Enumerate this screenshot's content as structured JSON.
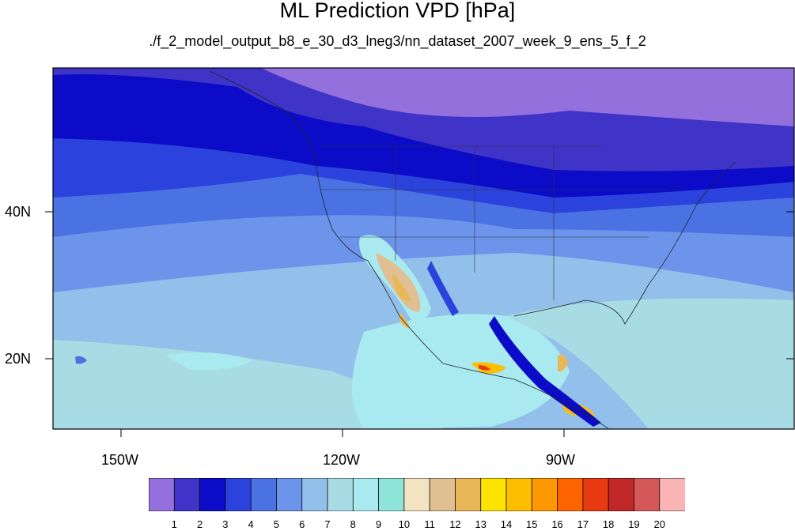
{
  "title": "ML Prediction VPD [hPa]",
  "subtitle": "./f_2_model_output_b8_e_30_d3_lneg3/nn_dataset_2007_week_9_ens_5_f_2",
  "map": {
    "region": "North Pacific and North America",
    "lon_labels": [
      "150W",
      "120W",
      "90W"
    ],
    "lat_labels": [
      "40N",
      "20N"
    ]
  },
  "colorbar": {
    "labels": [
      "1",
      "2",
      "3",
      "4",
      "5",
      "6",
      "7",
      "8",
      "9",
      "10",
      "11",
      "12",
      "13",
      "14",
      "15",
      "16",
      "17",
      "18",
      "19",
      "20"
    ],
    "colors": [
      "#9370db",
      "#3f33c8",
      "#0b0bc8",
      "#2b42dc",
      "#4a72e3",
      "#6c94ea",
      "#93c0ea",
      "#a8dce4",
      "#a8eaf0",
      "#8fe4d9",
      "#f2e4c0",
      "#e0c092",
      "#e8b858",
      "#fde400",
      "#fdbe00",
      "#fd9800",
      "#fd6400",
      "#e83a12",
      "#c02828",
      "#d45858",
      "#fbb4b4"
    ]
  }
}
